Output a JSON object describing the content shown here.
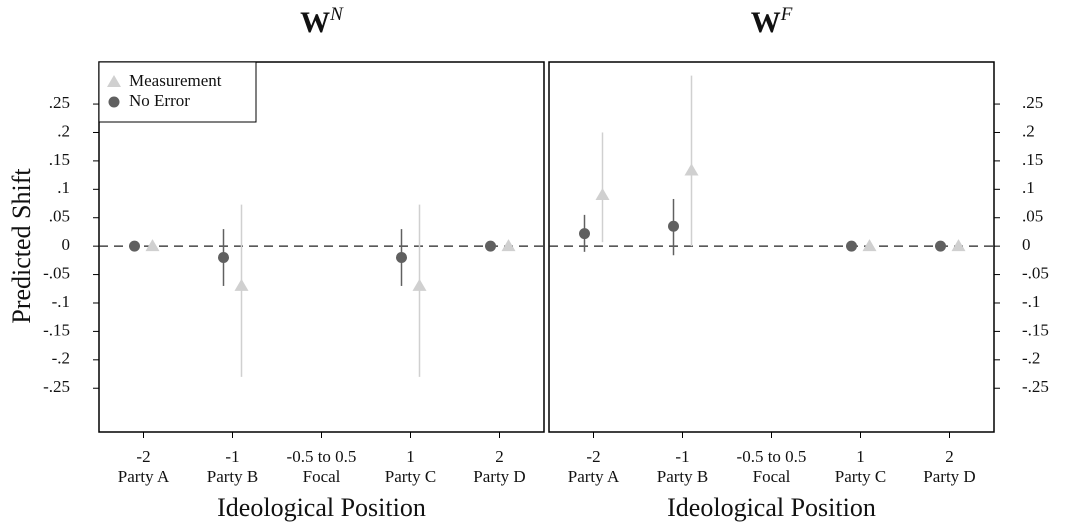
{
  "chart_data": [
    {
      "type": "scatter",
      "title": "W",
      "title_sup": "N",
      "x_label": "Ideological Position",
      "y_label": "Predicted Shift",
      "categories": [
        "-2",
        "-1",
        "-0.5 to 0.5",
        "1",
        "2"
      ],
      "category_names": [
        "Party A",
        "Party B",
        "Focal",
        "Party C",
        "Party D"
      ],
      "series": [
        {
          "name": "Measurement",
          "color": "#d0d0d0",
          "marker": "triangle",
          "values": [
            0,
            -0.07,
            null,
            -0.07,
            0
          ],
          "lower": [
            null,
            -0.23,
            null,
            -0.23,
            null
          ],
          "upper": [
            null,
            0.073,
            null,
            0.073,
            null
          ]
        },
        {
          "name": "No Error",
          "color": "#606060",
          "marker": "circle",
          "values": [
            0,
            -0.02,
            null,
            -0.02,
            0
          ],
          "lower": [
            null,
            -0.07,
            null,
            -0.07,
            null
          ],
          "upper": [
            null,
            0.03,
            null,
            0.03,
            null
          ]
        }
      ],
      "ylim": [
        -0.327,
        0.324
      ],
      "yticks": [
        {
          "value": 0.25,
          "label": ".25"
        },
        {
          "value": 0.2,
          "label": ".2"
        },
        {
          "value": 0.15,
          "label": ".15"
        },
        {
          "value": 0.1,
          "label": ".1"
        },
        {
          "value": 0.05,
          "label": ".05"
        },
        0,
        {
          "value": -0.05,
          "label": "-.05"
        },
        {
          "value": -0.1,
          "label": "-.1"
        },
        {
          "value": -0.15,
          "label": "-.15"
        },
        {
          "value": -0.2,
          "label": "-.2"
        },
        {
          "value": -0.25,
          "label": "-.25"
        }
      ],
      "hline": 0,
      "yaxis_side": "left",
      "legend": "upper left"
    },
    {
      "type": "scatter",
      "title": "W",
      "title_sup": "F",
      "x_label": "Ideological Position",
      "categories": [
        "-2",
        "-1",
        "-0.5 to 0.5",
        "1",
        "2"
      ],
      "category_names": [
        "Party A",
        "Party B",
        "Focal",
        "Party C",
        "Party D"
      ],
      "series": [
        {
          "name": "Measurement",
          "color": "#d0d0d0",
          "marker": "triangle",
          "values": [
            0.09,
            0.133,
            null,
            0,
            0
          ],
          "lower": [
            0.007,
            0,
            null,
            null,
            null
          ],
          "upper": [
            0.2,
            0.3,
            null,
            null,
            null
          ]
        },
        {
          "name": "No Error",
          "color": "#606060",
          "marker": "circle",
          "values": [
            0.022,
            0.035,
            null,
            0,
            0
          ],
          "lower": [
            -0.01,
            -0.016,
            null,
            null,
            null
          ],
          "upper": [
            0.055,
            0.083,
            null,
            null,
            null
          ]
        }
      ],
      "ylim": [
        -0.327,
        0.324
      ],
      "yticks": [
        {
          "value": 0.25,
          "label": ".25"
        },
        {
          "value": 0.2,
          "label": ".2"
        },
        {
          "value": 0.15,
          "label": ".15"
        },
        {
          "value": 0.1,
          "label": ".1"
        },
        {
          "value": 0.05,
          "label": ".05"
        },
        0,
        {
          "value": -0.05,
          "label": "-.05"
        },
        {
          "value": -0.1,
          "label": "-.1"
        },
        {
          "value": -0.15,
          "label": "-.15"
        },
        {
          "value": -0.2,
          "label": "-.2"
        },
        {
          "value": -0.25,
          "label": "-.25"
        }
      ],
      "hline": 0,
      "yaxis_side": "right",
      "legend": false
    }
  ]
}
